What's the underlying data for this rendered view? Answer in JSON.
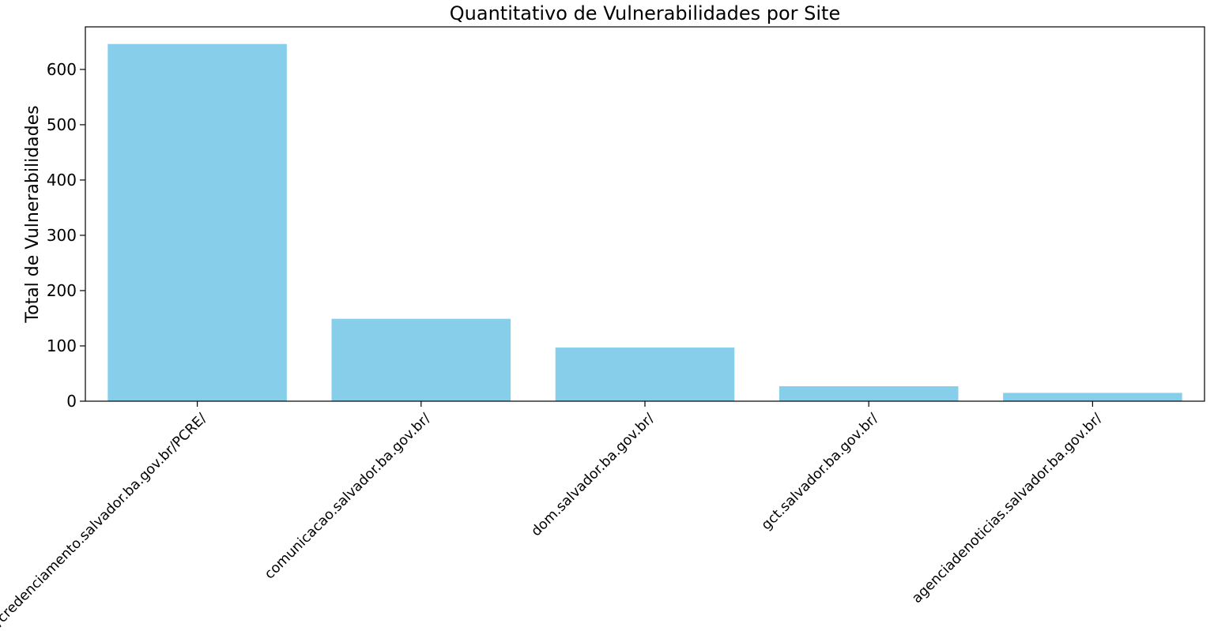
{
  "chart_data": {
    "type": "bar",
    "title": "Quantitativo de Vulnerabilidades por Site",
    "xlabel": "",
    "ylabel": "Total de Vulnerabilidades",
    "categories": [
      "https://credenciamento.salvador.ba.gov.br/PCRE/",
      "comunicacao.salvador.ba.gov.br/",
      "dom.salvador.ba.gov.br/",
      "gct.salvador.ba.gov.br/",
      "agenciadenoticias.salvador.ba.gov.br/"
    ],
    "values": [
      646,
      149,
      97,
      27,
      15
    ],
    "ylim": [
      0,
      677
    ],
    "yticks": [
      0,
      100,
      200,
      300,
      400,
      500,
      600
    ],
    "bar_color": "#87CEEB",
    "grid": false,
    "legend": "none"
  }
}
